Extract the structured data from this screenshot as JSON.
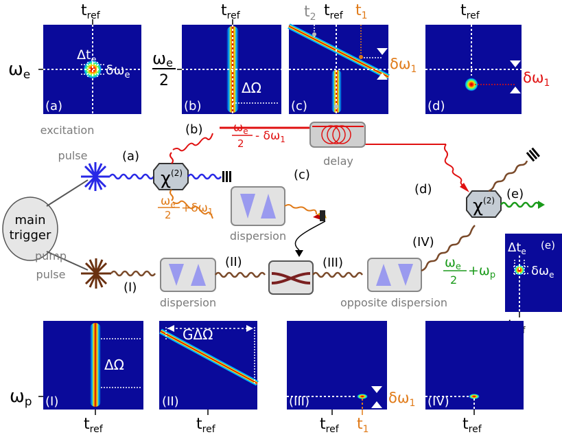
{
  "axis": {
    "t_ref": "t",
    "ref_sub": "ref",
    "omega_e": "ω",
    "omega_p": "ω",
    "e_sub": "e",
    "p_sub": "p",
    "two": "2"
  },
  "panels": {
    "a": "(a)",
    "b": "(b)",
    "c": "(c)",
    "d": "(d)",
    "e": "(e)",
    "I": "(I)",
    "II": "(II)",
    "III": "(III)",
    "IV": "(IV)"
  },
  "symbols": {
    "delta_t_e": "Δt",
    "delta_omega_e": "δω",
    "Delta_Omega": "ΔΩ",
    "G_Delta_Omega": "GΔΩ",
    "delta_omega_1": "δω",
    "one": "1",
    "t": "t",
    "t1_sub": "1",
    "t2_sub": "2"
  },
  "labels": {
    "excitation": "excitation",
    "pulse": "pulse",
    "main": "main",
    "trigger": "trigger",
    "pump": "pump",
    "dispersion": "dispersion",
    "opposite_dispersion": "opposite dispersion",
    "delay": "delay",
    "chi": "χ",
    "chi_sup": "(2)",
    "minus_dw1": "- δω",
    "plus_dw1": "+δω",
    "plus_wp": "+ω",
    "p": "p"
  },
  "colors": {
    "blue": "#2828e6",
    "red": "#e01010",
    "orange": "#e07a18",
    "brown": "#7a4a2a",
    "green": "#1a9a1a",
    "panel_bg": "#0a0a9a",
    "gray": "#8a8a8a"
  }
}
